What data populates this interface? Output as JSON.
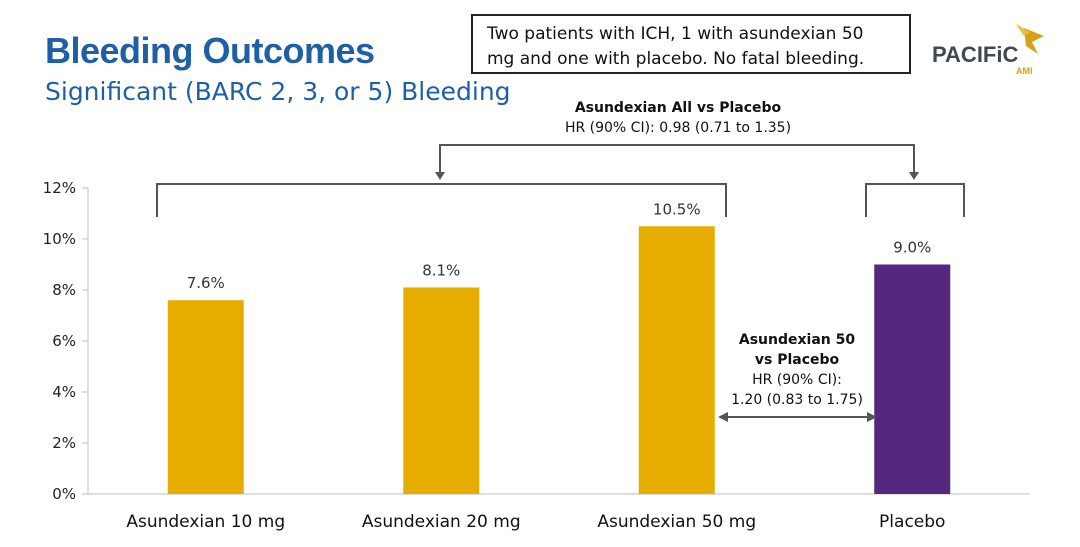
{
  "slide": {
    "title": "Bleeding Outcomes",
    "subtitle": "Significant (BARC 2, 3, or 5) Bleeding",
    "note": "Two patients with ICH, 1 with asundexian 50 mg and one with placebo. No fatal bleeding.",
    "logo_text": "PACIFiC",
    "logo_sub": "AMI"
  },
  "annotations": {
    "all_vs_placebo": {
      "heading": "Asundexian All vs Placebo",
      "hr": "HR (90% CI): 0.98 (0.71 to 1.35)"
    },
    "fifty_vs_placebo": {
      "heading_line1": "Asundexian 50",
      "heading_line2": "vs Placebo",
      "hr_line1": "HR (90% CI):",
      "hr_line2": "1.20 (0.83 to 1.75)"
    }
  },
  "colors": {
    "title": "#1f5fa6",
    "asundexian": "#e6ad00",
    "placebo": "#56277e",
    "bracket": "#555555"
  },
  "chart_data": {
    "type": "bar",
    "categories": [
      "Asundexian 10 mg",
      "Asundexian 20 mg",
      "Asundexian 50 mg",
      "Placebo"
    ],
    "values": [
      7.6,
      8.1,
      10.5,
      9.0
    ],
    "value_labels": [
      "7.6%",
      "8.1%",
      "10.5%",
      "9.0%"
    ],
    "bar_colors": [
      "#e6ad00",
      "#e6ad00",
      "#e6ad00",
      "#56277e"
    ],
    "ylim": [
      0,
      12
    ],
    "yticks": [
      0,
      2,
      4,
      6,
      8,
      10,
      12
    ],
    "ytick_labels": [
      "0%",
      "2%",
      "4%",
      "6%",
      "8%",
      "10%",
      "12%"
    ],
    "title": "Bleeding Outcomes",
    "xlabel": "",
    "ylabel": "",
    "grid": false,
    "legend": "none"
  }
}
